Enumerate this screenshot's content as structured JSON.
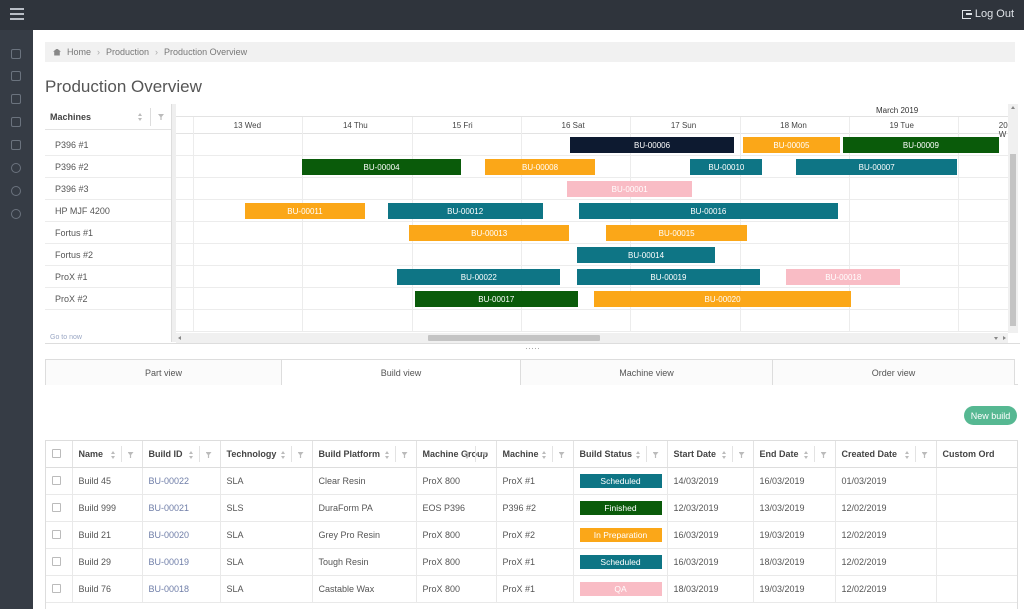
{
  "header": {
    "logout_label": "Log Out"
  },
  "breadcrumb": [
    "Home",
    "Production",
    "Production Overview"
  ],
  "page": {
    "title": "Production Overview"
  },
  "colors": {
    "teal": "#0e7585",
    "orange": "#fba718",
    "dark_green": "#0a5b0a",
    "navy": "#0d1a30",
    "pink": "#f9bcc5",
    "accent_green": "#56b892"
  },
  "gantt": {
    "machines_header": "Machines",
    "go_to_now": "Go to now",
    "month": "March 2019",
    "days": [
      "13 Wed",
      "14 Thu",
      "15 Fri",
      "16 Sat",
      "17 Sun",
      "18 Mon",
      "19 Tue",
      "20 W"
    ],
    "machines": [
      "P396 #1",
      "P396 #2",
      "P396 #3",
      "HP MJF 4200",
      "Fortus #1",
      "Fortus #2",
      "ProX #1",
      "ProX #2"
    ],
    "builds": [
      {
        "id": "BU-00006",
        "row": 0,
        "start": 3.45,
        "end": 4.95,
        "color": "navy"
      },
      {
        "id": "BU-00005",
        "row": 0,
        "start": 5.03,
        "end": 5.92,
        "color": "orange"
      },
      {
        "id": "BU-00009",
        "row": 0,
        "start": 5.95,
        "end": 7.37,
        "color": "dark_green"
      },
      {
        "id": "BU-00004",
        "row": 1,
        "start": 1.0,
        "end": 2.45,
        "color": "dark_green"
      },
      {
        "id": "BU-00008",
        "row": 1,
        "start": 2.67,
        "end": 3.68,
        "color": "orange"
      },
      {
        "id": "BU-00010",
        "row": 1,
        "start": 4.55,
        "end": 5.21,
        "color": "teal"
      },
      {
        "id": "BU-00007",
        "row": 1,
        "start": 5.52,
        "end": 6.99,
        "color": "teal"
      },
      {
        "id": "BU-00001",
        "row": 2,
        "start": 3.42,
        "end": 4.57,
        "color": "pink"
      },
      {
        "id": "BU-00011",
        "row": 3,
        "start": 0.48,
        "end": 1.57,
        "color": "orange"
      },
      {
        "id": "BU-00012",
        "row": 3,
        "start": 1.78,
        "end": 3.2,
        "color": "teal"
      },
      {
        "id": "BU-00016",
        "row": 3,
        "start": 3.53,
        "end": 5.9,
        "color": "teal"
      },
      {
        "id": "BU-00013",
        "row": 4,
        "start": 1.98,
        "end": 3.44,
        "color": "orange"
      },
      {
        "id": "BU-00015",
        "row": 4,
        "start": 3.78,
        "end": 5.07,
        "color": "orange"
      },
      {
        "id": "BU-00014",
        "row": 5,
        "start": 3.51,
        "end": 4.78,
        "color": "teal"
      },
      {
        "id": "BU-00022",
        "row": 6,
        "start": 1.87,
        "end": 3.36,
        "color": "teal"
      },
      {
        "id": "BU-00019",
        "row": 6,
        "start": 3.51,
        "end": 5.19,
        "color": "teal"
      },
      {
        "id": "BU-00018",
        "row": 6,
        "start": 5.43,
        "end": 6.47,
        "color": "pink"
      },
      {
        "id": "BU-00017",
        "row": 7,
        "start": 2.03,
        "end": 3.52,
        "color": "dark_green"
      },
      {
        "id": "BU-00020",
        "row": 7,
        "start": 3.67,
        "end": 6.02,
        "color": "orange"
      }
    ]
  },
  "tabs": [
    {
      "label": "Part view",
      "active": false
    },
    {
      "label": "Build view",
      "active": true
    },
    {
      "label": "Machine view",
      "active": false
    },
    {
      "label": "Order view",
      "active": false
    }
  ],
  "new_build_label": "New build",
  "table": {
    "columns": [
      "Name",
      "Build ID",
      "Technology",
      "Build Platform",
      "Machine Group",
      "Machine",
      "Build Status",
      "Start Date",
      "End Date",
      "Created Date",
      "Custom Ord"
    ],
    "rows": [
      {
        "name": "Build 45",
        "build_id": "BU-00022",
        "technology": "SLA",
        "platform": "Clear Resin",
        "group": "ProX 800",
        "machine": "ProX #1",
        "status": "Scheduled",
        "status_color": "teal",
        "start": "14/03/2019",
        "end": "16/03/2019",
        "created": "01/03/2019"
      },
      {
        "name": "Build 999",
        "build_id": "BU-00021",
        "technology": "SLS",
        "platform": "DuraForm PA",
        "group": "EOS P396",
        "machine": "P396 #2",
        "status": "Finished",
        "status_color": "dark_green",
        "start": "12/03/2019",
        "end": "13/03/2019",
        "created": "12/02/2019"
      },
      {
        "name": "Build 21",
        "build_id": "BU-00020",
        "technology": "SLA",
        "platform": "Grey Pro Resin",
        "group": "ProX 800",
        "machine": "ProX #2",
        "status": "In Preparation",
        "status_color": "orange",
        "start": "16/03/2019",
        "end": "19/03/2019",
        "created": "12/02/2019"
      },
      {
        "name": "Build 29",
        "build_id": "BU-00019",
        "technology": "SLA",
        "platform": "Tough Resin",
        "group": "ProX 800",
        "machine": "ProX #1",
        "status": "Scheduled",
        "status_color": "teal",
        "start": "16/03/2019",
        "end": "18/03/2019",
        "created": "12/02/2019"
      },
      {
        "name": "Build 76",
        "build_id": "BU-00018",
        "technology": "SLA",
        "platform": "Castable Wax",
        "group": "ProX 800",
        "machine": "ProX #1",
        "status": "QA",
        "status_color": "pink",
        "start": "18/03/2019",
        "end": "19/03/2019",
        "created": "12/02/2019"
      }
    ]
  }
}
